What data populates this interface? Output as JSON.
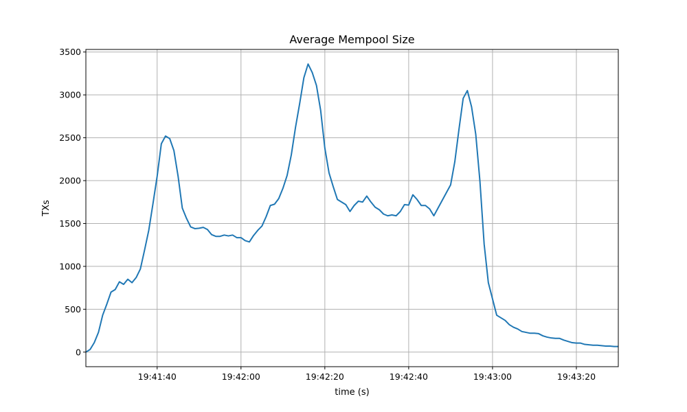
{
  "chart_data": {
    "type": "line",
    "title": "Average Mempool Size",
    "xlabel": "time (s)",
    "ylabel": "TXs",
    "grid": true,
    "xlim": [
      "19:41:23",
      "19:43:30"
    ],
    "ylim": [
      -170,
      3530
    ],
    "x_ticks": [
      "19:41:40",
      "19:42:00",
      "19:42:20",
      "19:42:40",
      "19:43:00",
      "19:43:20"
    ],
    "y_ticks": [
      0,
      500,
      1000,
      1500,
      2000,
      2500,
      3000,
      3500
    ],
    "series": [
      {
        "color": "#1f77b4",
        "x": [
          "19:41:23",
          "19:41:24",
          "19:41:25",
          "19:41:26",
          "19:41:27",
          "19:41:28",
          "19:41:29",
          "19:41:30",
          "19:41:31",
          "19:41:32",
          "19:41:33",
          "19:41:34",
          "19:41:35",
          "19:41:36",
          "19:41:37",
          "19:41:38",
          "19:41:39",
          "19:41:40",
          "19:41:41",
          "19:41:42",
          "19:41:43",
          "19:41:44",
          "19:41:45",
          "19:41:46",
          "19:41:47",
          "19:41:48",
          "19:41:49",
          "19:41:50",
          "19:41:51",
          "19:41:52",
          "19:41:53",
          "19:41:54",
          "19:41:55",
          "19:41:56",
          "19:41:57",
          "19:41:58",
          "19:41:59",
          "19:42:00",
          "19:42:01",
          "19:42:02",
          "19:42:03",
          "19:42:04",
          "19:42:05",
          "19:42:06",
          "19:42:07",
          "19:42:08",
          "19:42:09",
          "19:42:10",
          "19:42:11",
          "19:42:12",
          "19:42:13",
          "19:42:14",
          "19:42:15",
          "19:42:16",
          "19:42:17",
          "19:42:18",
          "19:42:19",
          "19:42:20",
          "19:42:21",
          "19:42:22",
          "19:42:23",
          "19:42:24",
          "19:42:25",
          "19:42:26",
          "19:42:27",
          "19:42:28",
          "19:42:29",
          "19:42:30",
          "19:42:31",
          "19:42:32",
          "19:42:33",
          "19:42:34",
          "19:42:35",
          "19:42:36",
          "19:42:37",
          "19:42:38",
          "19:42:39",
          "19:42:40",
          "19:42:41",
          "19:42:42",
          "19:42:43",
          "19:42:44",
          "19:42:45",
          "19:42:46",
          "19:42:47",
          "19:42:48",
          "19:42:49",
          "19:42:50",
          "19:42:51",
          "19:42:52",
          "19:42:53",
          "19:42:54",
          "19:42:55",
          "19:42:56",
          "19:42:57",
          "19:42:58",
          "19:42:59",
          "19:43:00",
          "19:43:01",
          "19:43:02",
          "19:43:03",
          "19:43:04",
          "19:43:05",
          "19:43:06",
          "19:43:07",
          "19:43:08",
          "19:43:09",
          "19:43:10",
          "19:43:11",
          "19:43:12",
          "19:43:13",
          "19:43:14",
          "19:43:15",
          "19:43:16",
          "19:43:17",
          "19:43:18",
          "19:43:19",
          "19:43:20",
          "19:43:21",
          "19:43:22",
          "19:43:23",
          "19:43:24",
          "19:43:25",
          "19:43:26",
          "19:43:27",
          "19:43:28",
          "19:43:29",
          "19:43:30"
        ],
        "y": [
          0,
          30,
          110,
          230,
          430,
          560,
          700,
          730,
          820,
          790,
          850,
          810,
          870,
          970,
          1190,
          1420,
          1730,
          2050,
          2430,
          2520,
          2490,
          2350,
          2050,
          1680,
          1560,
          1460,
          1440,
          1445,
          1455,
          1430,
          1370,
          1350,
          1350,
          1365,
          1355,
          1365,
          1335,
          1335,
          1300,
          1285,
          1360,
          1420,
          1470,
          1580,
          1710,
          1725,
          1790,
          1910,
          2060,
          2300,
          2620,
          2900,
          3200,
          3360,
          3260,
          3110,
          2820,
          2380,
          2090,
          1930,
          1780,
          1750,
          1720,
          1640,
          1710,
          1760,
          1750,
          1820,
          1750,
          1690,
          1660,
          1610,
          1590,
          1600,
          1590,
          1640,
          1720,
          1715,
          1835,
          1780,
          1710,
          1710,
          1670,
          1590,
          1680,
          1770,
          1860,
          1950,
          2220,
          2600,
          2960,
          3050,
          2860,
          2540,
          1990,
          1260,
          810,
          620,
          430,
          400,
          370,
          320,
          290,
          270,
          240,
          230,
          220,
          220,
          215,
          190,
          175,
          165,
          160,
          160,
          140,
          125,
          110,
          105,
          105,
          90,
          85,
          80,
          80,
          75,
          70,
          70,
          65,
          65
        ]
      }
    ]
  }
}
